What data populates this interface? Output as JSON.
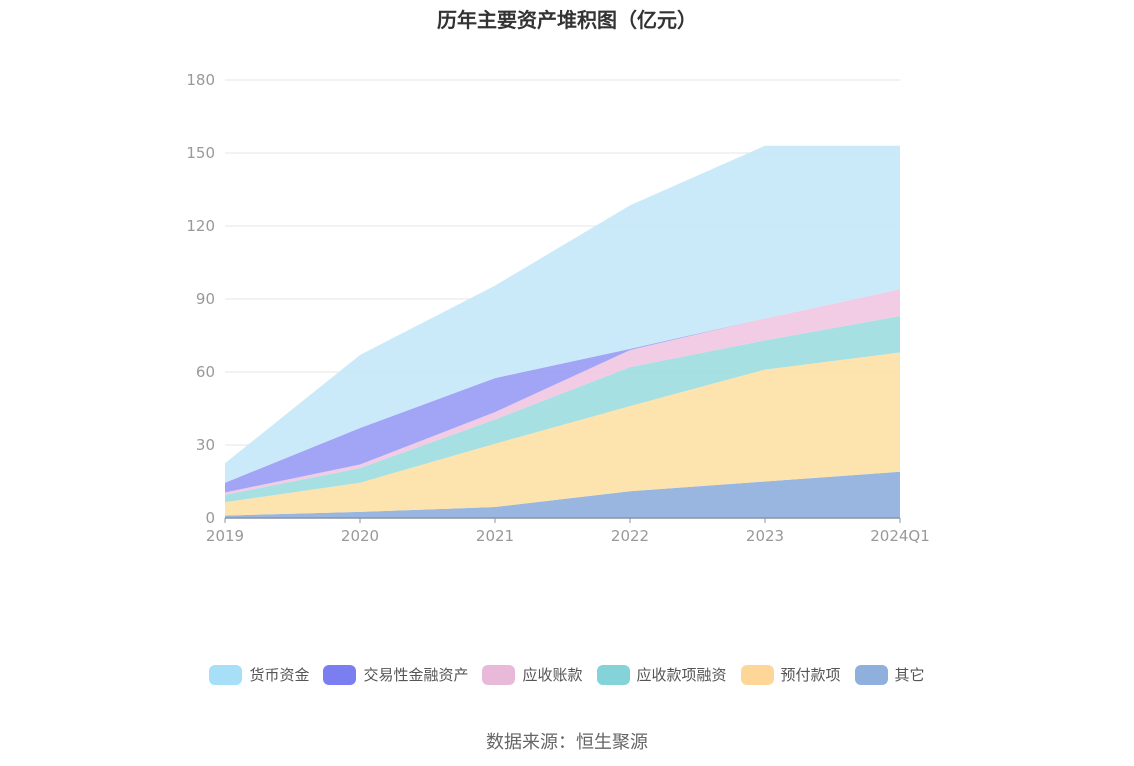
{
  "chart_data": {
    "type": "area",
    "stacked": true,
    "title": "历年主要资产堆积图（亿元）",
    "categories": [
      "2019",
      "2020",
      "2021",
      "2022",
      "2023",
      "2024Q1"
    ],
    "ylim": [
      0,
      180
    ],
    "yticks": [
      0,
      30,
      60,
      90,
      120,
      150,
      180
    ],
    "grid": true,
    "legend_position": "bottom",
    "series": [
      {
        "name": "其它",
        "color": "#8fb0dc",
        "values": [
          1,
          2.5,
          4.5,
          11,
          15,
          19
        ]
      },
      {
        "name": "预付款项",
        "color": "#fde1a7",
        "values": [
          5.5,
          12,
          26,
          35,
          46,
          49
        ]
      },
      {
        "name": "应收款项融资",
        "color": "#9fdde0",
        "values": [
          3,
          6,
          10,
          16,
          12,
          15
        ]
      },
      {
        "name": "应收账款",
        "color": "#f0c8e2",
        "values": [
          1,
          1.5,
          3,
          7,
          9,
          11
        ]
      },
      {
        "name": "交易性金融资产",
        "color": "#9a9df4",
        "values": [
          4,
          15,
          14,
          0.5,
          0,
          0
        ]
      },
      {
        "name": "货币资金",
        "color": "#c5e8f9",
        "values": [
          8,
          30,
          38,
          59,
          71,
          59
        ]
      }
    ],
    "legend": [
      {
        "name": "货币资金",
        "color": "#a7def8"
      },
      {
        "name": "交易性金融资产",
        "color": "#7b7ef0"
      },
      {
        "name": "应收账款",
        "color": "#e8b9d9"
      },
      {
        "name": "应收款项融资",
        "color": "#84d3d9"
      },
      {
        "name": "预付款项",
        "color": "#fdd698"
      },
      {
        "name": "其它",
        "color": "#8fb0dc"
      }
    ],
    "source": "数据来源：恒生聚源"
  }
}
